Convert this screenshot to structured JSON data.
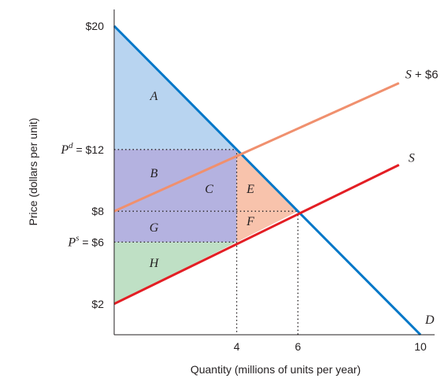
{
  "chart_data": {
    "type": "line",
    "title": "",
    "xlabel": "Quantity (millions of units per year)",
    "ylabel": "Price (dollars per unit)",
    "xlim": [
      0,
      10.5
    ],
    "ylim": [
      0,
      21
    ],
    "x_ticks": [
      {
        "value": 4,
        "label": "4"
      },
      {
        "value": 6,
        "label": "6"
      },
      {
        "value": 10,
        "label": "10"
      }
    ],
    "y_ticks": [
      {
        "value": 20,
        "label": "$20"
      },
      {
        "value": 12,
        "label": "= $12",
        "prefix": "P",
        "superscript": "d"
      },
      {
        "value": 8,
        "label": "$8"
      },
      {
        "value": 6,
        "label": "= $6",
        "prefix": "P",
        "superscript": "s"
      },
      {
        "value": 2,
        "label": "$2"
      }
    ],
    "series": [
      {
        "name": "D",
        "color": "#0077c8",
        "points": [
          [
            0,
            20
          ],
          [
            10,
            0
          ]
        ]
      },
      {
        "name": "S",
        "color": "#e31e24",
        "points": [
          [
            0,
            2
          ],
          [
            9.3,
            11
          ]
        ]
      },
      {
        "name": "S + $6",
        "color": "#f0906e",
        "points": [
          [
            0,
            8
          ],
          [
            9.3,
            16.3
          ]
        ]
      }
    ],
    "regions": [
      {
        "label": "A",
        "color": "#b8d4f0",
        "points": [
          [
            0,
            20
          ],
          [
            4,
            12
          ],
          [
            0,
            12
          ]
        ],
        "label_at": [
          1.3,
          15.5
        ]
      },
      {
        "label": "B",
        "color": "#b4b2e0",
        "points": [
          [
            0,
            12
          ],
          [
            4,
            12
          ],
          [
            4,
            8
          ],
          [
            0,
            8
          ]
        ],
        "label_at": [
          1.3,
          10.5
        ]
      },
      {
        "label": "C",
        "label_at": [
          3.1,
          9.5
        ]
      },
      {
        "label": "E",
        "color": "#f8c3ac",
        "points": [
          [
            4,
            12
          ],
          [
            6,
            8
          ],
          [
            4,
            8
          ]
        ],
        "label_at": [
          4.45,
          9.5
        ]
      },
      {
        "label": "G",
        "color": "#b4b2e0",
        "points": [
          [
            0,
            8
          ],
          [
            4,
            8
          ],
          [
            4,
            6
          ],
          [
            0,
            6
          ]
        ],
        "label_at": [
          1.3,
          7.0
        ]
      },
      {
        "label": "F",
        "color": "#f8c3ac",
        "points": [
          [
            4,
            8
          ],
          [
            6,
            8
          ],
          [
            4,
            6
          ]
        ],
        "label_at": [
          4.45,
          7.4
        ]
      },
      {
        "label": "H",
        "color": "#bfe0c5",
        "points": [
          [
            0,
            6
          ],
          [
            4,
            6
          ],
          [
            0,
            2
          ]
        ],
        "label_at": [
          1.3,
          4.7
        ]
      }
    ],
    "guides": [
      {
        "points": [
          [
            0,
            12
          ],
          [
            4,
            12
          ]
        ]
      },
      {
        "points": [
          [
            0,
            8
          ],
          [
            6,
            8
          ]
        ]
      },
      {
        "points": [
          [
            0,
            6
          ],
          [
            4,
            6
          ]
        ]
      },
      {
        "points": [
          [
            4,
            12
          ],
          [
            4,
            0
          ]
        ]
      },
      {
        "points": [
          [
            6,
            8
          ],
          [
            6,
            0
          ]
        ]
      }
    ],
    "grid": false,
    "legend": "none"
  }
}
